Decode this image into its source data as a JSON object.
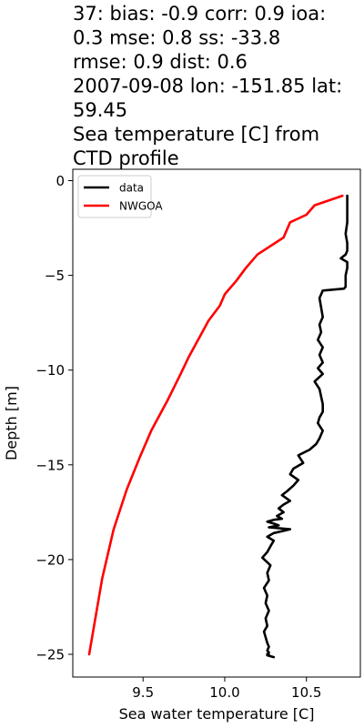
{
  "chart_data": {
    "type": "line",
    "title_lines": [
      "37: bias: -0.9  corr: 0.9  ioa:",
      "0.3  mse: 0.8  ss: -33.8",
      "rmse: 0.9  dist: 0.6",
      "2007-09-08 lon: -151.85 lat:",
      "59.45",
      "Sea temperature [C] from",
      "CTD profile"
    ],
    "xlabel": "Sea water temperature [C]",
    "ylabel": "Depth [m]",
    "xlim": [
      9.07,
      10.83
    ],
    "ylim": [
      -26.2,
      0.6
    ],
    "x_ticks": [
      9.5,
      10.0,
      10.5
    ],
    "x_tick_labels": [
      "9.5",
      "10.0",
      "10.5"
    ],
    "y_ticks": [
      0,
      -5,
      -10,
      -15,
      -20,
      -25
    ],
    "y_tick_labels": [
      "0",
      "−5",
      "−10",
      "−15",
      "−20",
      "−25"
    ],
    "legend": {
      "position": "upper-left"
    },
    "series": [
      {
        "name": "data",
        "color": "#000000",
        "x": [
          10.75,
          10.75,
          10.75,
          10.74,
          10.75,
          10.75,
          10.74,
          10.71,
          10.75,
          10.75,
          10.74,
          10.74,
          10.74,
          10.73,
          10.6,
          10.58,
          10.59,
          10.6,
          10.58,
          10.59,
          10.57,
          10.6,
          10.58,
          10.6,
          10.57,
          10.6,
          10.55,
          10.58,
          10.59,
          10.6,
          10.6,
          10.58,
          10.57,
          10.6,
          10.58,
          10.56,
          10.52,
          10.45,
          10.48,
          10.42,
          10.4,
          10.45,
          10.42,
          10.38,
          10.35,
          10.4,
          10.36,
          10.33,
          10.36,
          10.32,
          10.35,
          10.3,
          10.26,
          10.3,
          10.33,
          10.27,
          10.4,
          10.3,
          10.26,
          10.3,
          10.28,
          10.26,
          10.23,
          10.28,
          10.26,
          10.27,
          10.24,
          10.26,
          10.25,
          10.27,
          10.25,
          10.26,
          10.24,
          10.25,
          10.26,
          10.27,
          10.26,
          10.27,
          10.26,
          10.27,
          10.26,
          10.28,
          10.3
        ],
        "y": [
          -0.8,
          -1.5,
          -2.2,
          -2.8,
          -3.3,
          -3.7,
          -3.9,
          -4.1,
          -4.3,
          -4.6,
          -5.0,
          -5.3,
          -5.6,
          -5.7,
          -5.8,
          -6.2,
          -6.7,
          -7.2,
          -7.6,
          -8.0,
          -8.4,
          -8.8,
          -9.2,
          -9.6,
          -9.9,
          -10.2,
          -10.6,
          -11.0,
          -11.4,
          -11.8,
          -12.2,
          -12.5,
          -12.8,
          -13.2,
          -13.6,
          -13.9,
          -14.2,
          -14.5,
          -14.9,
          -15.2,
          -15.5,
          -15.8,
          -16.1,
          -16.4,
          -16.6,
          -16.9,
          -17.1,
          -17.3,
          -17.5,
          -17.7,
          -17.85,
          -17.9,
          -18.0,
          -18.1,
          -18.2,
          -18.3,
          -18.4,
          -18.6,
          -18.8,
          -19.0,
          -19.3,
          -19.6,
          -19.9,
          -20.3,
          -20.7,
          -21.1,
          -21.5,
          -21.9,
          -22.3,
          -22.7,
          -23.1,
          -23.5,
          -23.8,
          -24.1,
          -24.4,
          -24.6,
          -24.8,
          -24.9,
          -25.0,
          -25.0,
          -25.05,
          -25.1,
          -25.15
        ]
      },
      {
        "name": "NWGOA",
        "color": "#ff0000",
        "x": [
          10.72,
          10.55,
          10.5,
          10.4,
          10.36,
          10.2,
          10.13,
          10.07,
          10.0,
          9.97,
          9.9,
          9.85,
          9.78,
          9.73,
          9.65,
          9.55,
          9.48,
          9.4,
          9.32,
          9.25,
          9.17
        ],
        "y": [
          -0.8,
          -1.3,
          -1.8,
          -2.2,
          -3.0,
          -3.9,
          -4.6,
          -5.3,
          -6.0,
          -6.6,
          -7.4,
          -8.2,
          -9.3,
          -10.2,
          -11.6,
          -13.2,
          -14.6,
          -16.3,
          -18.4,
          -21.0,
          -25.0
        ]
      }
    ]
  }
}
